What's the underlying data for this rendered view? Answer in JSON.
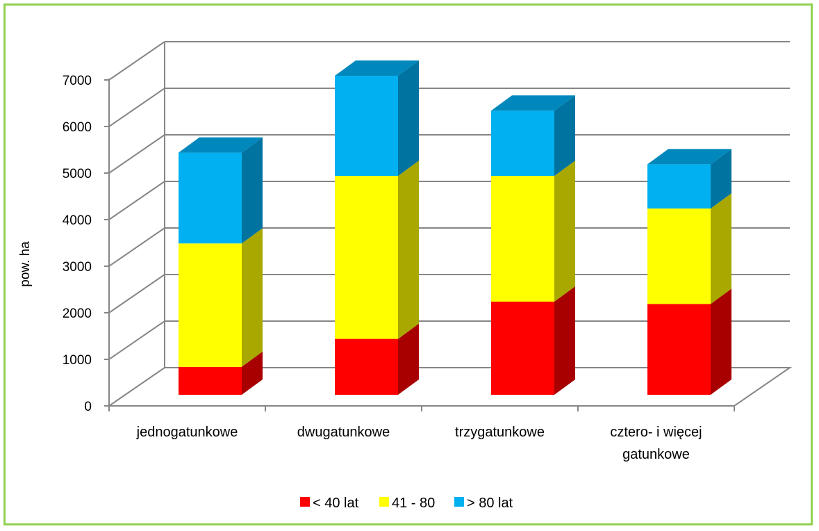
{
  "chart_data": {
    "type": "bar",
    "stacked": true,
    "three_d": true,
    "title": "",
    "xlabel": "",
    "ylabel": "pow. ha",
    "ylim": [
      0,
      7000
    ],
    "y_ticks": [
      "0",
      "1000",
      "2000",
      "3000",
      "4000",
      "5000",
      "6000",
      "7000"
    ],
    "categories": [
      [
        "jednogatunkowe"
      ],
      [
        "dwugatunkowe"
      ],
      [
        "trzygatunkowe"
      ],
      [
        "cztero- i więcej",
        "gatunkowe"
      ]
    ],
    "series": [
      {
        "name": "< 40 lat",
        "values": [
          600,
          1200,
          2000,
          1950
        ],
        "color": "#ff0000",
        "side_color": "#a80000",
        "top_color": "#c80000"
      },
      {
        "name": "41 - 80",
        "values": [
          2650,
          3500,
          2700,
          2050
        ],
        "color": "#ffff00",
        "side_color": "#a8a800",
        "top_color": "#d4d400"
      },
      {
        "name": "> 80 lat",
        "values": [
          1950,
          2150,
          1400,
          950
        ],
        "color": "#00b0f0",
        "side_color": "#0073a0",
        "top_color": "#0088bc"
      }
    ],
    "grid": true,
    "legend_position": "bottom"
  },
  "frame_color": "#92d050",
  "grid_color": "#868686"
}
